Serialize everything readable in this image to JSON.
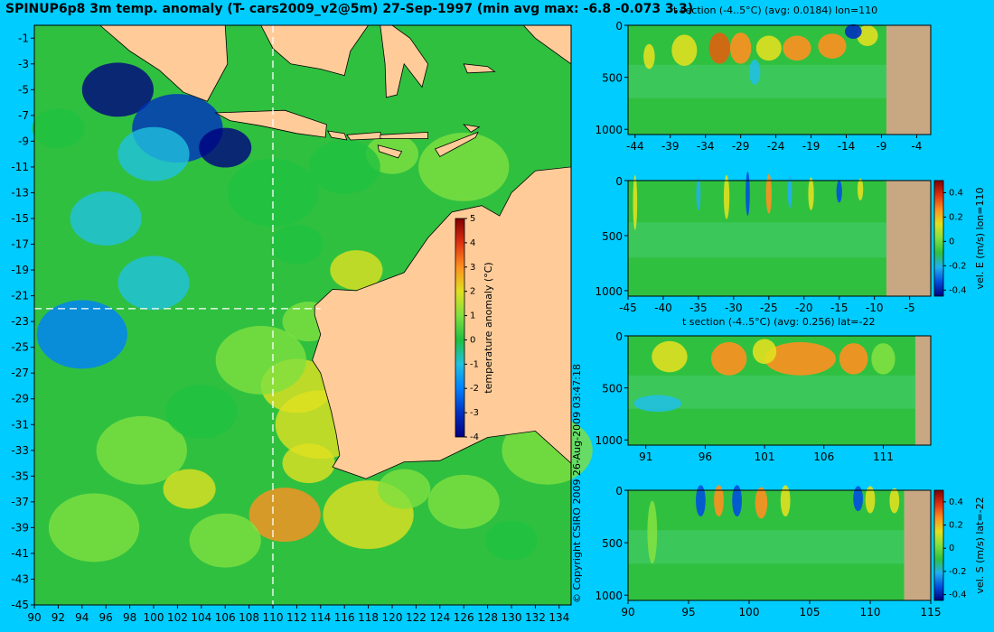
{
  "title": "SPINUP6p8 3m temp. anomaly (T- cars2009_v2@5m) 27-Sep-1997 (min avg max: -6.8 -0.073 3.3)",
  "copyright": "© Copyright CSIRO 2009   26-Aug-2009 03:47:18",
  "map": {
    "type": "heatmap",
    "x_ticks": [
      "90",
      "92",
      "94",
      "96",
      "98",
      "100",
      "102",
      "104",
      "106",
      "108",
      "110",
      "112",
      "114",
      "116",
      "118",
      "120",
      "122",
      "124",
      "126",
      "128",
      "130",
      "132",
      "134"
    ],
    "y_ticks": [
      "-1",
      "-3",
      "-5",
      "-7",
      "-9",
      "-11",
      "-13",
      "-15",
      "-17",
      "-19",
      "-21",
      "-23",
      "-25",
      "-27",
      "-29",
      "-31",
      "-33",
      "-35",
      "-37",
      "-39",
      "-41",
      "-43",
      "-45"
    ],
    "section_lon": 110,
    "section_lat": -22,
    "colorbar": {
      "label": "temperature anomaly (°C)",
      "ticks": [
        "5",
        "4",
        "3",
        "2",
        "1",
        "0",
        "-1",
        "-2",
        "-3",
        "-4"
      ]
    }
  },
  "panels": [
    {
      "title": "t section (-4..5°C) (avg: 0.0184) lon=110",
      "x_ticks": [
        "-44",
        "-39",
        "-34",
        "-29",
        "-24",
        "-19",
        "-14",
        "-9",
        "-4"
      ],
      "y_ticks": [
        "0",
        "500",
        "1000"
      ]
    },
    {
      "title": "",
      "x_ticks": [
        "-45",
        "-40",
        "-35",
        "-30",
        "-25",
        "-20",
        "-15",
        "-10",
        "-5"
      ],
      "y_ticks": [
        "0",
        "500",
        "1000"
      ],
      "colorbar": {
        "label": "vel. E (m/s) lon=110",
        "ticks": [
          "0.4",
          "0.2",
          "0",
          "-0.2",
          "-0.4"
        ]
      }
    },
    {
      "title": "t section (-4..5°C) (avg: 0.256) lat=-22",
      "x_ticks": [
        "91",
        "96",
        "101",
        "106",
        "111"
      ],
      "y_ticks": [
        "0",
        "500",
        "1000"
      ]
    },
    {
      "title": "",
      "x_ticks": [
        "90",
        "95",
        "100",
        "105",
        "110",
        "115"
      ],
      "y_ticks": [
        "0",
        "500",
        "1000"
      ],
      "colorbar": {
        "label": "vel. S (m/s) lat=-22",
        "ticks": [
          "0.4",
          "0.2",
          "0",
          "-0.2",
          "-0.4"
        ]
      }
    }
  ],
  "chart_data": [
    {
      "type": "heatmap",
      "title": "SPINUP6p8 3m temp. anomaly (T- cars2009_v2@5m) 27-Sep-1997 (min avg max: -6.8 -0.073 3.3)",
      "xlim": [
        90,
        135
      ],
      "ylim": [
        -45,
        0
      ],
      "value_range": [
        -4,
        5
      ],
      "colorbar_label": "temperature anomaly (°C)",
      "stats": {
        "min": -6.8,
        "avg": -0.073,
        "max": 3.3
      }
    },
    {
      "type": "heatmap",
      "title": "t section (-4..5°C) (avg: 0.0184) lon=110",
      "xlim": [
        -45,
        -2
      ],
      "ylim": [
        1050,
        0
      ],
      "value_range": [
        -4,
        5
      ],
      "avg": 0.0184
    },
    {
      "type": "heatmap",
      "title": "",
      "xlim": [
        -45,
        -2
      ],
      "ylim": [
        1050,
        0
      ],
      "value_range": [
        -0.4,
        0.4
      ],
      "colorbar_label": "vel. E (m/s) lon=110"
    },
    {
      "type": "heatmap",
      "title": "t section (-4..5°C) (avg: 0.256) lat=-22",
      "xlim": [
        90,
        115
      ],
      "ylim": [
        1050,
        0
      ],
      "value_range": [
        -4,
        5
      ],
      "avg": 0.256
    },
    {
      "type": "heatmap",
      "title": "",
      "xlim": [
        90,
        115
      ],
      "ylim": [
        1050,
        0
      ],
      "value_range": [
        -0.4,
        0.4
      ],
      "colorbar_label": "vel. S (m/s) lat=-22"
    }
  ]
}
